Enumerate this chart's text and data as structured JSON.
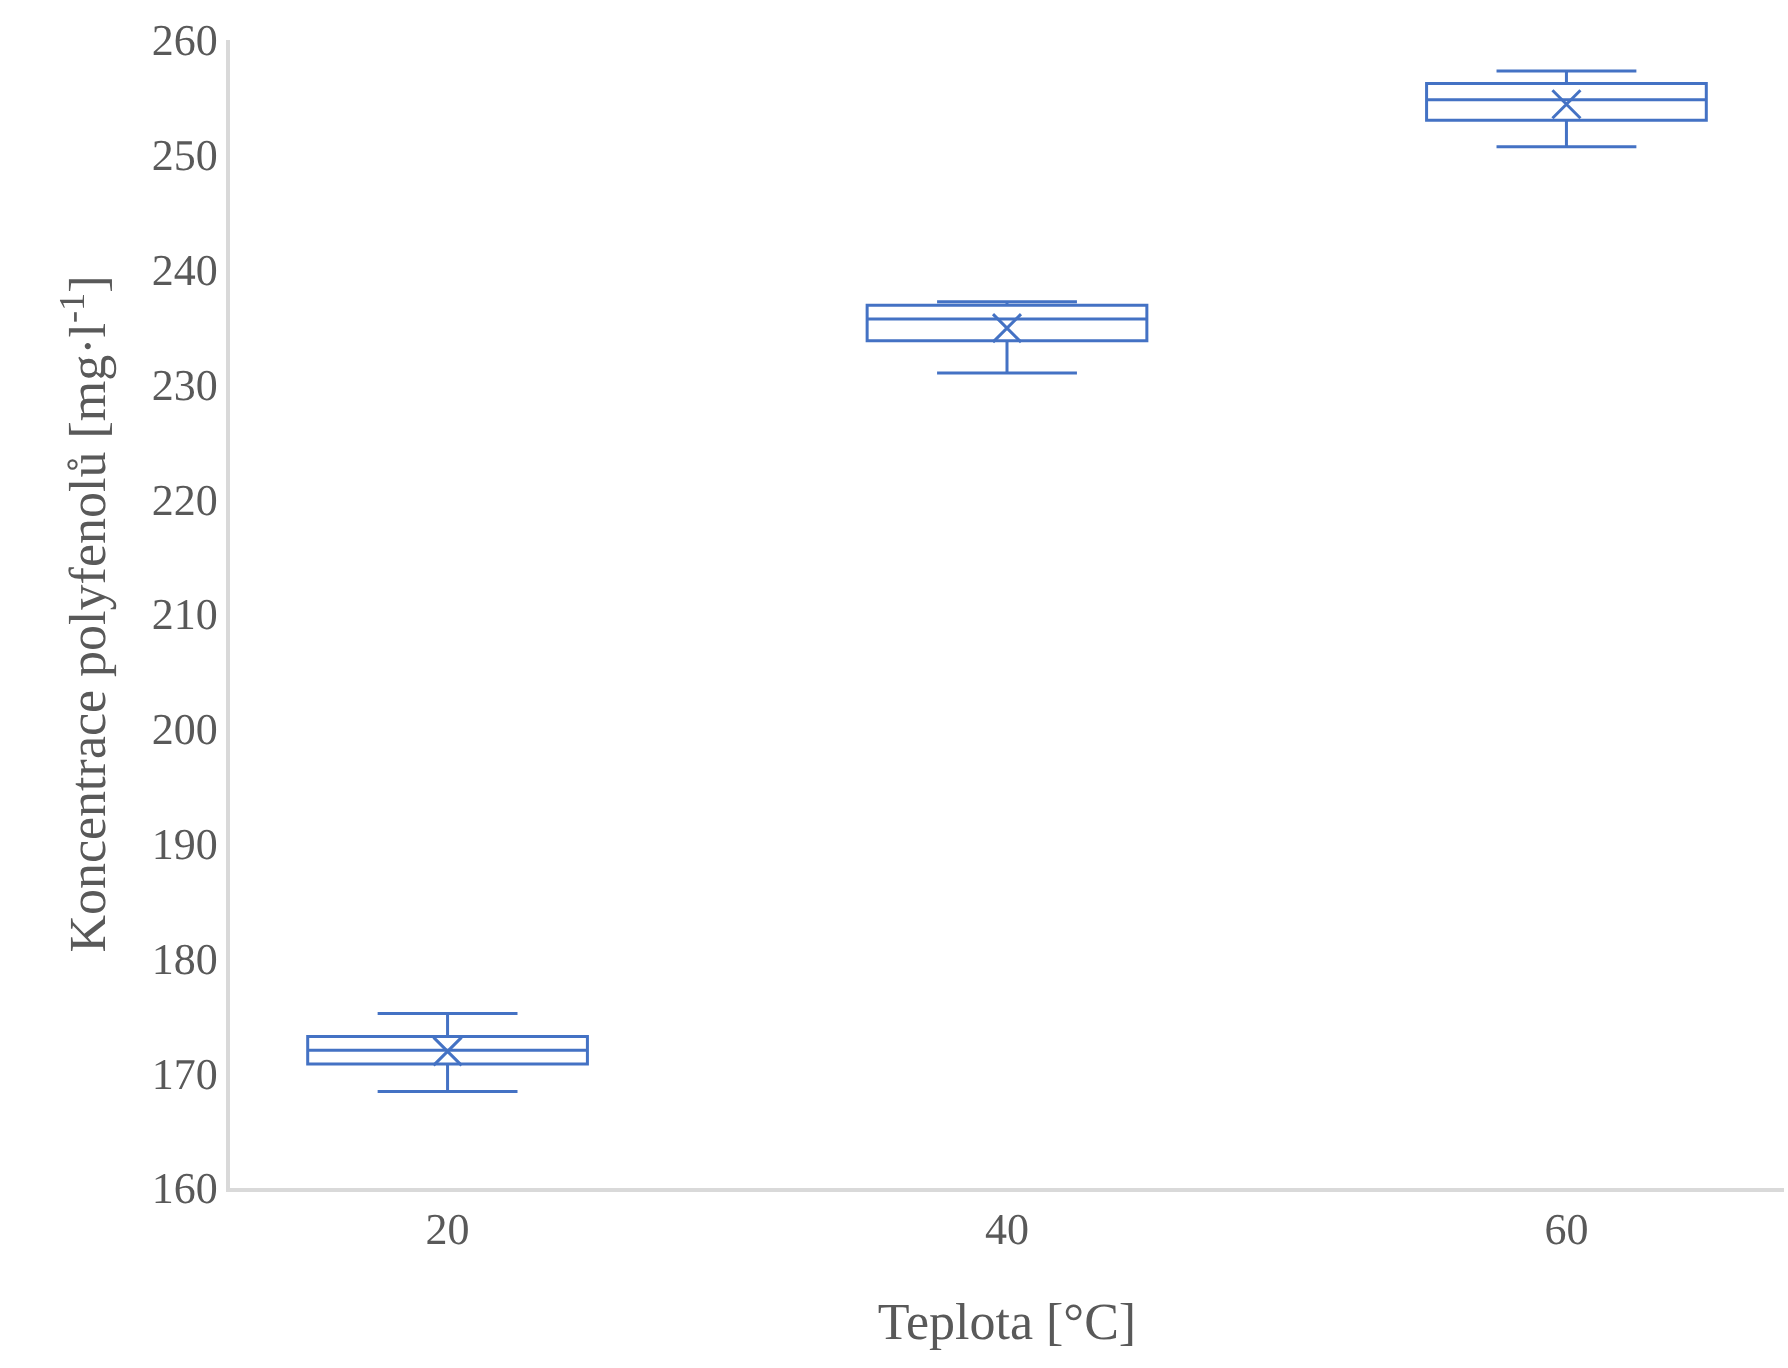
{
  "chart_data": {
    "type": "box",
    "xlabel": "Teplota [°C]",
    "ylabel": "Koncentrace polyfenolů [mg·l$^{-1}$]",
    "categories": [
      "20",
      "40",
      "60"
    ],
    "boxes": [
      {
        "low": 168.4,
        "q1": 170.8,
        "median": 172.0,
        "q3": 173.2,
        "high": 175.2,
        "mean": 171.9
      },
      {
        "low": 231.0,
        "q1": 233.8,
        "median": 235.7,
        "q3": 236.9,
        "high": 237.2,
        "mean": 234.9
      },
      {
        "low": 250.7,
        "q1": 253.0,
        "median": 254.8,
        "q3": 256.2,
        "high": 257.3,
        "mean": 254.4
      }
    ],
    "color": "#4472c4",
    "ylim": [
      160,
      260
    ],
    "yticks": [
      160,
      170,
      180,
      190,
      200,
      210,
      220,
      230,
      240,
      250,
      260
    ]
  }
}
